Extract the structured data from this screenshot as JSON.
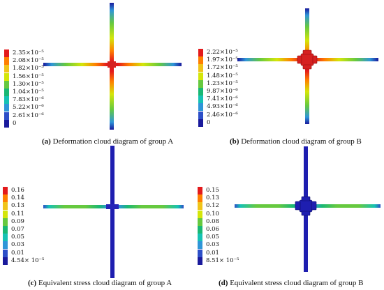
{
  "colors": {
    "legend": [
      "#e31a1c",
      "#ff7f00",
      "#f0c419",
      "#d4e60a",
      "#66c93f",
      "#19b874",
      "#16c2b4",
      "#2f96d8",
      "#2d4fc8",
      "#1a1a9c"
    ],
    "deep_blue": "#1e1eb0",
    "red": "#d62020"
  },
  "panels": [
    {
      "id": "a",
      "caption_letter": "(a)",
      "caption_text": " Deformation cloud diagram of group A",
      "legend_labels": [
        "2.35×10⁻⁵",
        "2.08×10⁻⁵",
        "1.82×10⁻⁵",
        "1.56×10⁻⁵",
        "1.30×10⁻⁵",
        "1.04×10⁻⁵",
        "7.83×10⁻⁶",
        "5.22×10⁻⁶",
        "2.61×10⁻⁶",
        "0"
      ]
    },
    {
      "id": "b",
      "caption_letter": "(b)",
      "caption_text": " Deformation cloud diagram of group B",
      "legend_labels": [
        "2.22×10⁻⁵",
        "1.97×10⁻⁵",
        "1.72×10⁻⁵",
        "1.48×10⁻⁵",
        "1.23×10⁻⁵",
        "9.87×10⁻⁶",
        "7.41×10⁻⁶",
        "4.93×10⁻⁶",
        "2.46×10⁻⁶",
        "0"
      ]
    },
    {
      "id": "c",
      "caption_letter": "(c)",
      "caption_text": " Equivalent stress cloud diagram of group A",
      "legend_labels": [
        "0.16",
        "0.14",
        "0.13",
        "0.11",
        "0.09",
        "0.07",
        "0.05",
        "0.03",
        "0.01",
        "4.54× 10⁻⁵"
      ]
    },
    {
      "id": "d",
      "caption_letter": "(d)",
      "caption_text": " Equivalent stress cloud diagram of group B",
      "legend_labels": [
        "0.15",
        "0.13",
        "0.12",
        "0.10",
        "0.08",
        "0.06",
        "0.05",
        "0.03",
        "0.01",
        "8.51× 10⁻⁵"
      ]
    }
  ]
}
